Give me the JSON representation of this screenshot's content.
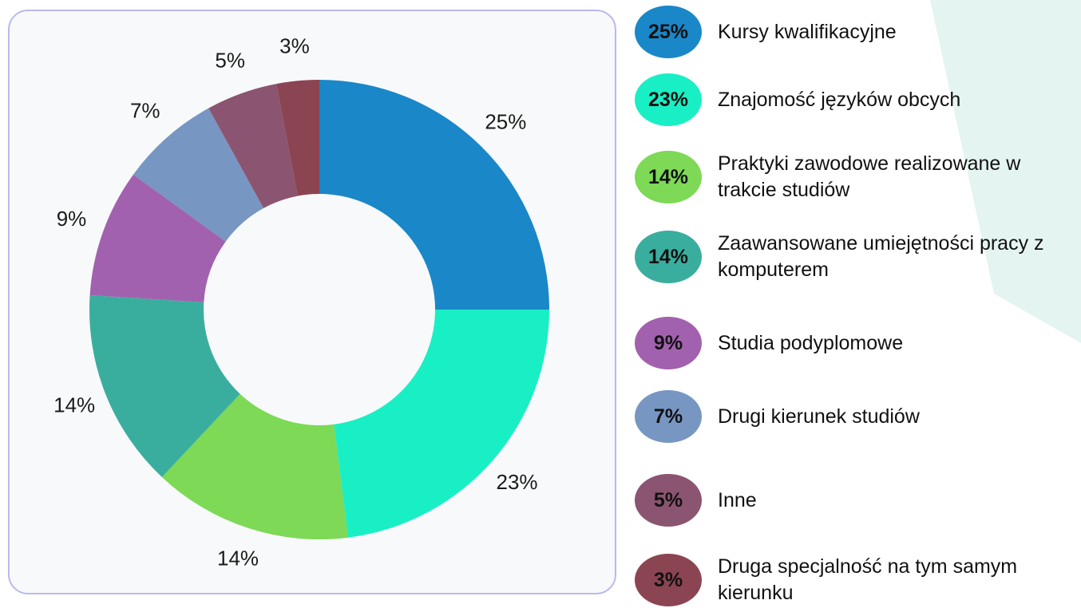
{
  "chart_data": {
    "type": "pie",
    "categories": [
      "Kursy kwalifikacyjne",
      "Znajomość języków obcych",
      "Praktyki zawodowe realizowane w trakcie studiów",
      "Zaawansowane umiejętności pracy z komputerem",
      "Studia podyplomowe",
      "Drugi kierunek studiów",
      "Inne",
      "Druga specjalność na tym samym kierunku"
    ],
    "values": [
      25,
      23,
      14,
      14,
      9,
      7,
      5,
      3
    ],
    "value_labels": [
      "25%",
      "23%",
      "14%",
      "14%",
      "9%",
      "7%",
      "5%",
      "3%"
    ],
    "colors": [
      "#1a87c8",
      "#19efc4",
      "#7dd956",
      "#3aae9e",
      "#a261ae",
      "#7796c2",
      "#8b5470",
      "#8b4552"
    ],
    "donut": true
  }
}
